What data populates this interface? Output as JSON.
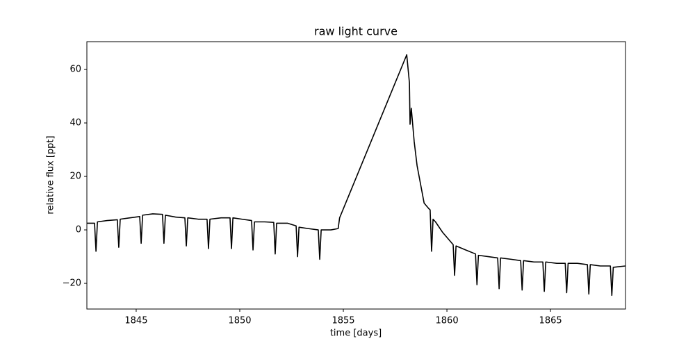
{
  "chart_data": {
    "type": "line",
    "title": "raw light curve",
    "xlabel": "time [days]",
    "ylabel": "relative flux [ppt]",
    "x": [
      1842.62,
      1842.99,
      1843.06,
      1843.13,
      1843.6,
      1844.09,
      1844.16,
      1844.23,
      1844.7,
      1845.17,
      1845.24,
      1845.31,
      1845.8,
      1846.27,
      1846.34,
      1846.41,
      1846.9,
      1847.35,
      1847.42,
      1847.49,
      1848.0,
      1848.42,
      1848.49,
      1848.56,
      1849.1,
      1849.53,
      1849.6,
      1849.67,
      1850.1,
      1850.57,
      1850.64,
      1850.71,
      1851.2,
      1851.64,
      1851.71,
      1851.78,
      1852.3,
      1852.72,
      1852.79,
      1852.86,
      1853.3,
      1853.79,
      1853.86,
      1853.93,
      1854.4,
      1854.75,
      1854.82,
      1858.06,
      1858.19,
      1858.22,
      1858.28,
      1858.42,
      1858.56,
      1858.9,
      1859.12,
      1859.19,
      1859.26,
      1859.33,
      1859.45,
      1859.8,
      1860.3,
      1860.37,
      1860.44,
      1860.9,
      1861.38,
      1861.45,
      1861.52,
      1862.0,
      1862.45,
      1862.52,
      1862.59,
      1863.1,
      1863.56,
      1863.63,
      1863.7,
      1864.2,
      1864.63,
      1864.7,
      1864.77,
      1865.3,
      1865.71,
      1865.78,
      1865.85,
      1866.3,
      1866.78,
      1866.85,
      1866.92,
      1867.4,
      1867.89,
      1867.96,
      1868.03,
      1868.62
    ],
    "series": [
      {
        "color": "#000000",
        "values": [
          2.5,
          2.5,
          -8,
          3,
          3.5,
          3.8,
          -6.5,
          4,
          4.5,
          5,
          -5,
          5.5,
          6,
          5.8,
          -5,
          5.5,
          4.8,
          4.5,
          -6,
          4.5,
          4,
          4,
          -7,
          4,
          4.5,
          4.5,
          -7,
          4.5,
          4,
          3.5,
          -7.5,
          3,
          3,
          2.8,
          -9,
          2.5,
          2.5,
          1.5,
          -10,
          1,
          0.5,
          0,
          -11,
          0,
          0,
          0.5,
          4.5,
          65.5,
          55,
          39.5,
          45.5,
          33,
          24,
          10,
          8,
          7.5,
          -8,
          4,
          3,
          -1,
          -5.5,
          -17,
          -6,
          -7.5,
          -9,
          -20.5,
          -9.5,
          -10,
          -10.5,
          -22,
          -10.5,
          -11,
          -11.5,
          -22.5,
          -11.5,
          -12,
          -12,
          -23,
          -12,
          -12.5,
          -12.5,
          -23.5,
          -12.5,
          -12.5,
          -13,
          -24,
          -13,
          -13.5,
          -13.5,
          -24.5,
          -14,
          -13.5
        ]
      }
    ],
    "xlim": [
      1842.62,
      1868.62
    ],
    "xticks": [
      1845,
      1850,
      1855,
      1860,
      1865
    ],
    "ylim": [
      -29.6,
      70.4
    ],
    "yticks": [
      {
        "value": -20,
        "label": "−20"
      },
      0,
      20,
      40,
      60
    ]
  }
}
